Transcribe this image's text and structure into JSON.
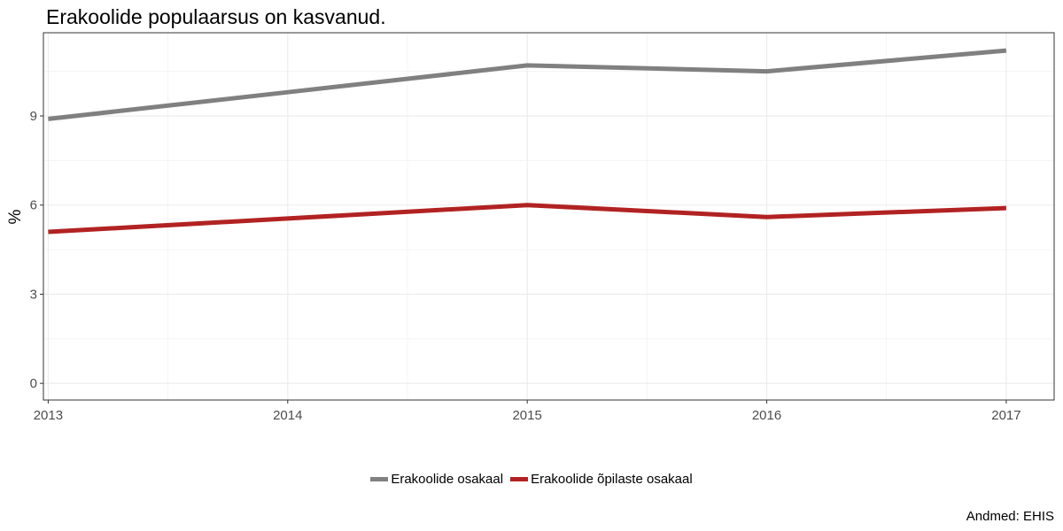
{
  "chart_data": {
    "type": "line",
    "title": "Erakoolide populaarsus on kasvanud.",
    "xlabel": "",
    "ylabel": "%",
    "x": [
      2013,
      2014,
      2015,
      2016,
      2017
    ],
    "x_tick_labels": [
      "2013",
      "2014",
      "2015",
      "2016",
      "2017"
    ],
    "y_ticks": [
      0,
      3,
      6,
      9
    ],
    "y_tick_labels": [
      "0",
      "3",
      "6",
      "9"
    ],
    "xlim": [
      2012.98,
      2017.2
    ],
    "ylim": [
      -0.56,
      11.8
    ],
    "grid": true,
    "legend_position": "bottom",
    "caption": "Andmed: EHIS",
    "series": [
      {
        "name": "Erakoolide osakaal",
        "color": "#808080",
        "values": [
          8.9,
          9.8,
          10.7,
          10.5,
          11.2
        ]
      },
      {
        "name": "Erakoolide õpilaste osakaal",
        "color": "#b22222",
        "values": [
          5.1,
          5.55,
          6.0,
          5.6,
          5.9
        ]
      }
    ]
  }
}
